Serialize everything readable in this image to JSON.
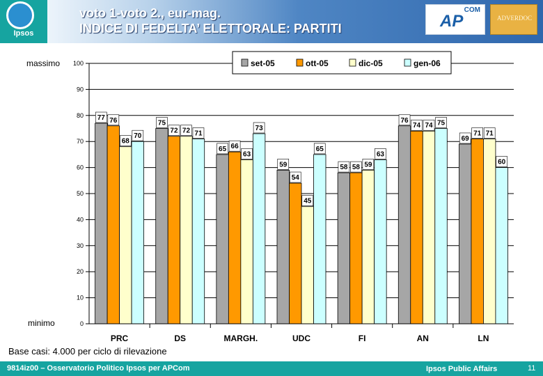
{
  "header": {
    "title_line1": "voto 1-voto 2., eur-mag.",
    "title_line2": "INDICE DI FEDELTA’ ELETTORALE: PARTITI",
    "logo_text": "Ipsos",
    "partner_logo_ap": "AP",
    "partner_logo_com": "COM",
    "partner_logo_adv": "ADVERDOC"
  },
  "chart_data": {
    "type": "bar",
    "categories": [
      "PRC",
      "DS",
      "MARGH.",
      "UDC",
      "FI",
      "AN",
      "LN"
    ],
    "series": [
      {
        "name": "set-05",
        "color": "#a6a6a6",
        "values": [
          77,
          75,
          65,
          59,
          58,
          76,
          69
        ]
      },
      {
        "name": "ott-05",
        "color": "#ff9900",
        "values": [
          76,
          72,
          66,
          54,
          58,
          74,
          71
        ]
      },
      {
        "name": "dic-05",
        "color": "#ffffcc",
        "values": [
          68,
          72,
          63,
          45,
          59,
          74,
          71
        ]
      },
      {
        "name": "gen-06",
        "color": "#ccffff",
        "values": [
          70,
          71,
          73,
          65,
          63,
          75,
          60
        ]
      }
    ],
    "ylim": [
      0,
      100
    ],
    "yticks": [
      0,
      10,
      20,
      30,
      40,
      50,
      60,
      70,
      80,
      90,
      100
    ],
    "y_top_label": "massimo",
    "y_bottom_label": "minimo",
    "grid": true,
    "legend_position": "top-right"
  },
  "note": "Base casi: 4.000 per ciclo di rilevazione",
  "footer": {
    "left": "9814iz00 – Osservatorio Politico Ipsos per APCom",
    "right": "Ipsos Public Affairs",
    "page": "11"
  }
}
